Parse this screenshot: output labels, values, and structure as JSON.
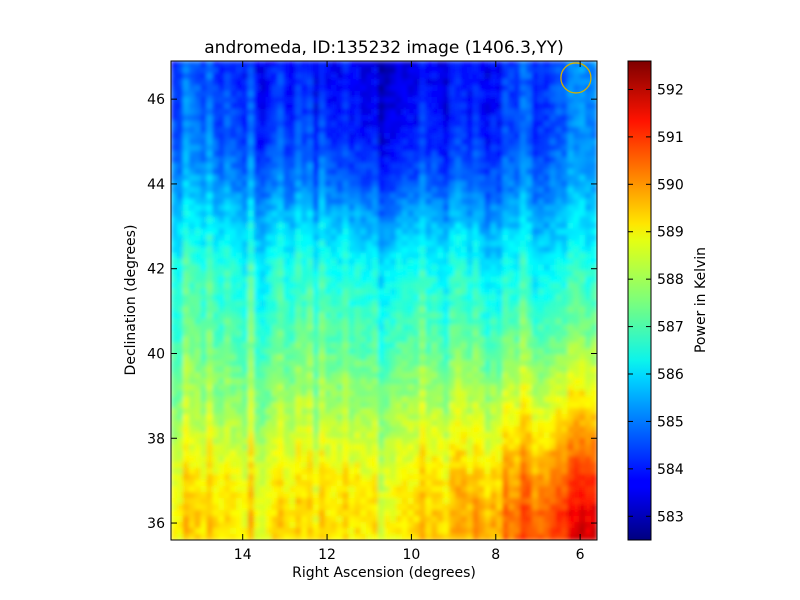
{
  "chart_data": {
    "type": "heatmap",
    "title": "andromeda, ID:135232 image (1406.3,YY)",
    "xlabel": "Right Ascension (degrees)",
    "ylabel": "Declination (degrees)",
    "xlim": [
      15.7,
      5.6
    ],
    "ylim": [
      35.6,
      46.9
    ],
    "xticks": [
      14,
      12,
      10,
      8,
      6
    ],
    "yticks": [
      36,
      38,
      40,
      42,
      44,
      46
    ],
    "colorbar": {
      "label": "Power in Kelvin",
      "range": [
        582.5,
        592.6
      ],
      "ticks": [
        583,
        584,
        585,
        586,
        587,
        588,
        589,
        590,
        591,
        592
      ],
      "colormap": "jet"
    },
    "value_profile": {
      "declination": [
        36.0,
        37.0,
        38.0,
        39.0,
        40.0,
        41.0,
        42.0,
        43.0,
        44.0,
        45.0,
        46.0,
        46.7
      ],
      "power_east_side": [
        589.2,
        589.0,
        588.3,
        587.8,
        587.4,
        587.0,
        586.8,
        586.2,
        585.5,
        585.0,
        584.8,
        584.6
      ],
      "power_center": [
        589.0,
        588.8,
        588.3,
        587.8,
        587.2,
        586.8,
        586.4,
        585.6,
        584.6,
        583.9,
        583.6,
        583.5
      ],
      "power_west_side": [
        591.8,
        591.0,
        590.0,
        589.0,
        588.0,
        587.2,
        586.6,
        586.0,
        585.5,
        585.2,
        585.2,
        585.3
      ]
    },
    "annotation": {
      "type": "circle",
      "ra": 6.1,
      "dec": 46.5,
      "color": "#d4b000"
    }
  }
}
